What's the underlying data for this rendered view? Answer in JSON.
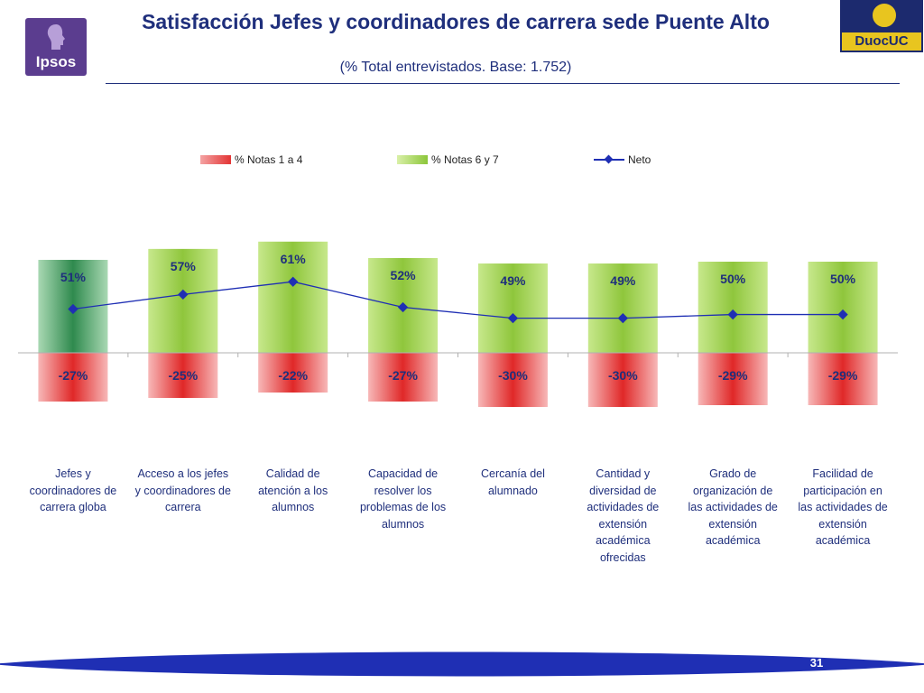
{
  "header": {
    "title": "Satisfacción Jefes y coordinadores de carrera sede Puente Alto",
    "subtitle": "(% Total entrevistados. Base: 1.752)",
    "logo_left": "Ipsos",
    "logo_right": "DuocUC"
  },
  "colors": {
    "red": "#e33434",
    "green": "#8cc63a",
    "green_dark": "#2f8a4e",
    "line": "#1f2fb4",
    "title": "#1f2f7c"
  },
  "chart_data": {
    "type": "bar",
    "categories": [
      "Jefes y coordinadores de carrera globa",
      "Acceso a los jefes y coordinadores de carrera",
      "Calidad de atención a los alumnos",
      "Capacidad de resolver los problemas de los alumnos",
      "Cercanía del alumnado",
      "Cantidad y diversidad de actividades de extensión académica ofrecidas",
      "Grado de organización de las actividades de extensión académica",
      "Facilidad de participación en las actividades de extensión académica"
    ],
    "category_lines": [
      [
        "Jefes y",
        "coordinadores de",
        "carrera globa"
      ],
      [
        "Acceso a los jefes",
        "y coordinadores de",
        "carrera"
      ],
      [
        "Calidad de",
        "atención a los",
        "alumnos"
      ],
      [
        "Capacidad de",
        "resolver los",
        "problemas de los",
        "alumnos"
      ],
      [
        "Cercanía del",
        "alumnado"
      ],
      [
        "Cantidad y",
        "diversidad de",
        "actividades de",
        "extensión",
        "académica",
        "ofrecidas"
      ],
      [
        "Grado de",
        "organización de",
        "las actividades de",
        "extensión",
        "académica"
      ],
      [
        "Facilidad de",
        "participación en",
        "las actividades de",
        "extensión",
        "académica"
      ]
    ],
    "series": [
      {
        "name": "% Notas 1 a 4",
        "values": [
          -27,
          -25,
          -22,
          -27,
          -30,
          -30,
          -29,
          -29
        ],
        "labels": [
          "-27%",
          "-25%",
          "-22%",
          "-27%",
          "-30%",
          "-30%",
          "-29%",
          "-29%"
        ]
      },
      {
        "name": "% Notas 6 y 7",
        "values": [
          51,
          57,
          61,
          52,
          49,
          49,
          50,
          50
        ],
        "labels": [
          "51%",
          "57%",
          "61%",
          "52%",
          "49%",
          "49%",
          "50%",
          "50%"
        ]
      },
      {
        "name": "Neto",
        "values": [
          24,
          32,
          39,
          25,
          19,
          19,
          21,
          21
        ]
      }
    ],
    "ylim": [
      -35,
      70
    ],
    "legend": "top",
    "title": "",
    "xlabel": "",
    "ylabel": ""
  },
  "footer": {
    "page_number": "31"
  }
}
